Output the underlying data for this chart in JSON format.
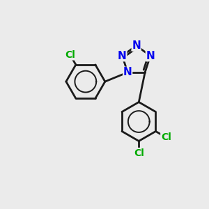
{
  "background_color": "#ebebeb",
  "bond_color": "#1a1a1a",
  "nitrogen_color": "#0000ee",
  "chlorine_color": "#00aa00",
  "bond_width": 2.0,
  "font_size_N": 11,
  "font_size_Cl": 10,
  "xlim": [
    0,
    10
  ],
  "ylim": [
    0,
    10
  ]
}
